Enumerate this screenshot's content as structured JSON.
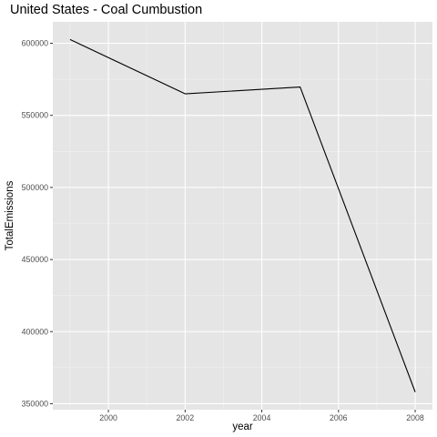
{
  "chart_data": {
    "type": "line",
    "title": "United States - Coal Cumbustion",
    "xlabel": "year",
    "ylabel": "TotalEmissions",
    "x": [
      1999,
      2002,
      2005,
      2008
    ],
    "series": [
      {
        "values": [
          602624,
          564940,
          569654,
          358084
        ]
      }
    ],
    "xlim": [
      1998.55,
      2008.45
    ],
    "ylim": [
      345856,
      614851
    ],
    "xticks": [
      2000,
      2002,
      2004,
      2006,
      2008
    ],
    "xtick_labels": [
      "2000",
      "2002",
      "2004",
      "2006",
      "2008"
    ],
    "yticks": [
      350000,
      400000,
      450000,
      500000,
      550000,
      600000
    ],
    "ytick_labels": [
      "350000",
      "400000",
      "450000",
      "500000",
      "550000",
      "600000"
    ],
    "grid": true,
    "legend": "none",
    "colors": {
      "panel_background": "#e5e5e5",
      "grid_major": "#ffffff",
      "grid_minor": "#f2f2f2",
      "line": "#000000",
      "tick_text": "#4d4d4d",
      "tick_mark": "#333333"
    }
  }
}
